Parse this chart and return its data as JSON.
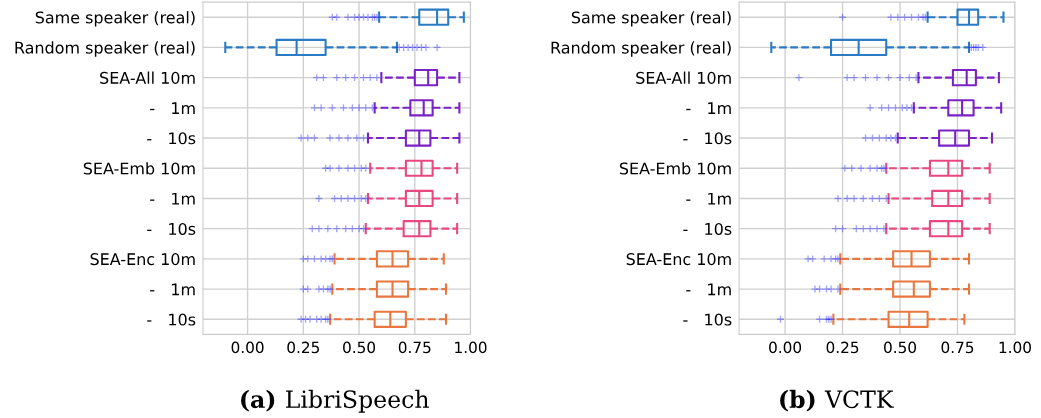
{
  "chart_data": [
    {
      "type": "box",
      "orientation": "horizontal",
      "annotations": [
        "(a) LibriSpeech"
      ],
      "categories": [
        "Same speaker (real)",
        "Random speaker (real)",
        "SEA-All 10m",
        "-   1m",
        "-   10s",
        "SEA-Emb 10m",
        "-   1m",
        "-   10s",
        "SEA-Enc 10m",
        "-   1m",
        "-   10s"
      ],
      "colors": [
        "#2a7bc4",
        "#2a7bc4",
        "#7b22c4",
        "#7b22c4",
        "#7b22c4",
        "#e8487e",
        "#e8487e",
        "#e8487e",
        "#e8773f",
        "#e8773f",
        "#e8773f"
      ],
      "boxes": [
        {
          "low": 0.59,
          "q1": 0.77,
          "median": 0.85,
          "q3": 0.9,
          "high": 0.97,
          "outliers": [
            0.38,
            0.4,
            0.45,
            0.48,
            0.5,
            0.52,
            0.54,
            0.56,
            0.57,
            0.58
          ]
        },
        {
          "low": -0.1,
          "q1": 0.13,
          "median": 0.22,
          "q3": 0.35,
          "high": 0.67,
          "outliers": [
            0.68,
            0.7,
            0.72,
            0.74,
            0.76,
            0.78,
            0.8,
            0.85
          ]
        },
        {
          "low": 0.6,
          "q1": 0.75,
          "median": 0.81,
          "q3": 0.85,
          "high": 0.95,
          "outliers": [
            0.31,
            0.34,
            0.4,
            0.44,
            0.48,
            0.52,
            0.55,
            0.58
          ]
        },
        {
          "low": 0.57,
          "q1": 0.73,
          "median": 0.79,
          "q3": 0.83,
          "high": 0.95,
          "outliers": [
            0.3,
            0.33,
            0.38,
            0.43,
            0.47,
            0.5,
            0.53,
            0.56
          ]
        },
        {
          "low": 0.54,
          "q1": 0.71,
          "median": 0.77,
          "q3": 0.82,
          "high": 0.95,
          "outliers": [
            0.24,
            0.27,
            0.3,
            0.37,
            0.41,
            0.45,
            0.49,
            0.52
          ]
        },
        {
          "low": 0.55,
          "q1": 0.71,
          "median": 0.78,
          "q3": 0.83,
          "high": 0.94,
          "outliers": [
            0.35,
            0.37,
            0.41,
            0.45,
            0.48,
            0.51,
            0.53
          ]
        },
        {
          "low": 0.54,
          "q1": 0.71,
          "median": 0.77,
          "q3": 0.83,
          "high": 0.94,
          "outliers": [
            0.32,
            0.39,
            0.42,
            0.45,
            0.48,
            0.51,
            0.53
          ]
        },
        {
          "low": 0.53,
          "q1": 0.7,
          "median": 0.77,
          "q3": 0.82,
          "high": 0.94,
          "outliers": [
            0.29,
            0.32,
            0.36,
            0.4,
            0.44,
            0.47,
            0.5,
            0.52
          ]
        },
        {
          "low": 0.39,
          "q1": 0.58,
          "median": 0.65,
          "q3": 0.72,
          "high": 0.88,
          "outliers": [
            0.25,
            0.27,
            0.3,
            0.33,
            0.35,
            0.37,
            0.38
          ]
        },
        {
          "low": 0.38,
          "q1": 0.58,
          "median": 0.65,
          "q3": 0.72,
          "high": 0.89,
          "outliers": [
            0.25,
            0.27,
            0.32,
            0.34,
            0.36,
            0.37
          ]
        },
        {
          "low": 0.37,
          "q1": 0.57,
          "median": 0.64,
          "q3": 0.71,
          "high": 0.89,
          "outliers": [
            0.24,
            0.26,
            0.28,
            0.31,
            0.33,
            0.35,
            0.36
          ]
        }
      ],
      "xlim": [
        -0.2,
        1.0
      ],
      "xticks": [
        {
          "value": 0,
          "label": "0.00"
        },
        {
          "value": 0.25,
          "label": "0.25"
        },
        {
          "value": 0.5,
          "label": "0.50"
        },
        {
          "value": 0.75,
          "label": "0.75"
        },
        {
          "value": 1.0,
          "label": "1.00"
        }
      ],
      "grid": true,
      "line_style": "dashed"
    },
    {
      "type": "box",
      "orientation": "horizontal",
      "annotations": [
        "(b) VCTK"
      ],
      "categories": [
        "Same speaker (real)",
        "Random speaker (real)",
        "SEA-All 10m",
        "-   1m",
        "-   10s",
        "SEA-Emb 10m",
        "-   1m",
        "-   10s",
        "SEA-Enc 10m",
        "-   1m",
        "-   10s"
      ],
      "colors": [
        "#2a7bc4",
        "#2a7bc4",
        "#7b22c4",
        "#7b22c4",
        "#7b22c4",
        "#e8487e",
        "#e8487e",
        "#e8487e",
        "#e8773f",
        "#e8773f",
        "#e8773f"
      ],
      "boxes": [
        {
          "low": 0.62,
          "q1": 0.75,
          "median": 0.8,
          "q3": 0.84,
          "high": 0.95,
          "outliers": [
            0.25,
            0.46,
            0.49,
            0.52,
            0.55,
            0.58,
            0.6,
            0.61
          ]
        },
        {
          "low": -0.06,
          "q1": 0.2,
          "median": 0.32,
          "q3": 0.44,
          "high": 0.8,
          "outliers": [
            0.81,
            0.82,
            0.83,
            0.84,
            0.86
          ]
        },
        {
          "low": 0.58,
          "q1": 0.73,
          "median": 0.79,
          "q3": 0.83,
          "high": 0.93,
          "outliers": [
            0.06,
            0.27,
            0.3,
            0.35,
            0.4,
            0.45,
            0.5,
            0.54,
            0.57
          ]
        },
        {
          "low": 0.56,
          "q1": 0.71,
          "median": 0.77,
          "q3": 0.82,
          "high": 0.94,
          "outliers": [
            0.37,
            0.42,
            0.45,
            0.48,
            0.51,
            0.53,
            0.55
          ]
        },
        {
          "low": 0.49,
          "q1": 0.67,
          "median": 0.74,
          "q3": 0.8,
          "high": 0.9,
          "outliers": [
            0.35,
            0.38,
            0.41,
            0.44,
            0.46,
            0.48
          ]
        },
        {
          "low": 0.44,
          "q1": 0.63,
          "median": 0.71,
          "q3": 0.77,
          "high": 0.89,
          "outliers": [
            0.26,
            0.29,
            0.33,
            0.37,
            0.4,
            0.42,
            0.43
          ]
        },
        {
          "low": 0.45,
          "q1": 0.64,
          "median": 0.71,
          "q3": 0.77,
          "high": 0.89,
          "outliers": [
            0.23,
            0.27,
            0.3,
            0.34,
            0.38,
            0.41,
            0.44
          ]
        },
        {
          "low": 0.44,
          "q1": 0.63,
          "median": 0.71,
          "q3": 0.77,
          "high": 0.89,
          "outliers": [
            0.22,
            0.25,
            0.31,
            0.34,
            0.37,
            0.4,
            0.43
          ]
        },
        {
          "low": 0.24,
          "q1": 0.47,
          "median": 0.55,
          "q3": 0.63,
          "high": 0.8,
          "outliers": [
            0.1,
            0.12,
            0.17,
            0.2,
            0.22,
            0.23
          ]
        },
        {
          "low": 0.24,
          "q1": 0.47,
          "median": 0.56,
          "q3": 0.63,
          "high": 0.8,
          "outliers": [
            0.13,
            0.15,
            0.18,
            0.2,
            0.23
          ]
        },
        {
          "low": 0.21,
          "q1": 0.45,
          "median": 0.54,
          "q3": 0.62,
          "high": 0.78,
          "outliers": [
            -0.02,
            0.15,
            0.18,
            0.19,
            0.2
          ]
        }
      ],
      "xlim": [
        -0.2,
        1.0
      ],
      "xticks": [
        {
          "value": 0,
          "label": "0.00"
        },
        {
          "value": 0.25,
          "label": "0.25"
        },
        {
          "value": 0.5,
          "label": "0.50"
        },
        {
          "value": 0.75,
          "label": "0.75"
        },
        {
          "value": 1.0,
          "label": "1.00"
        }
      ],
      "grid": true,
      "line_style": "dashed"
    }
  ]
}
